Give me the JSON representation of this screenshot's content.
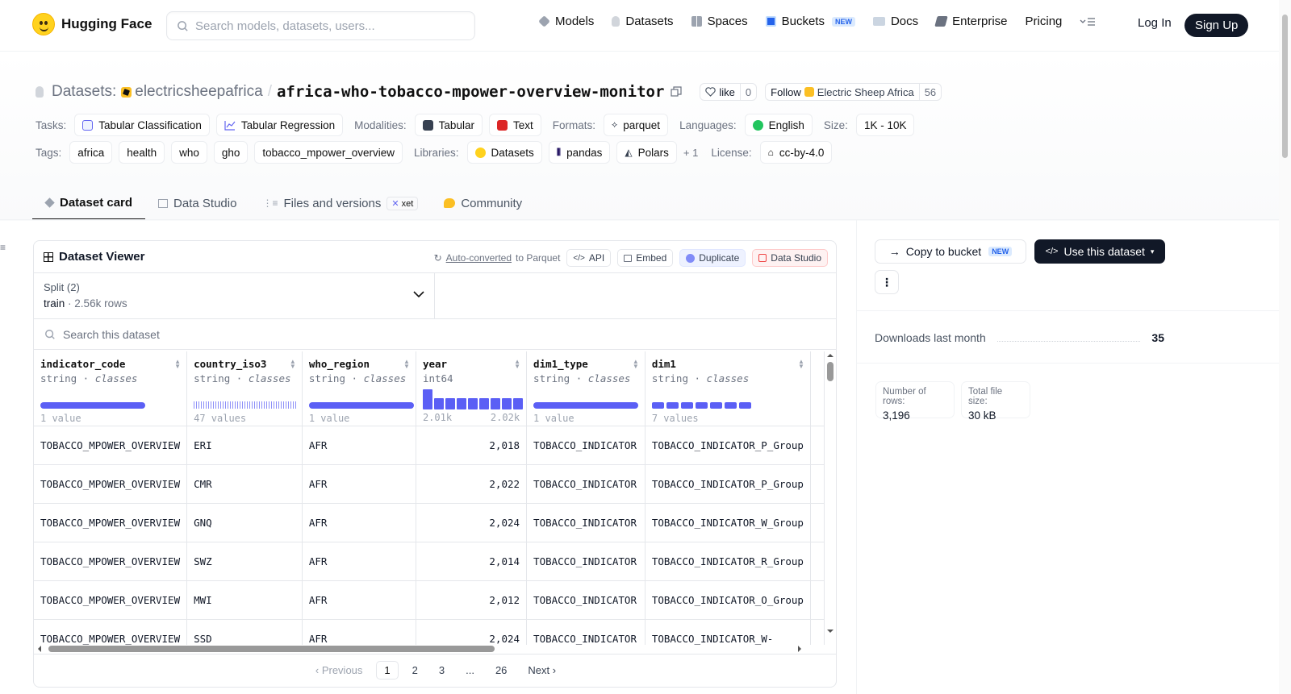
{
  "nav": {
    "brand": "Hugging Face",
    "search_placeholder": "Search models, datasets, users...",
    "links": [
      {
        "label": "Models",
        "icon": "models-icon",
        "color": "#9ca3af"
      },
      {
        "label": "Datasets",
        "icon": "datasets-icon",
        "color": "#d1d5db"
      },
      {
        "label": "Spaces",
        "icon": "spaces-icon",
        "color": "#9ca3af"
      },
      {
        "label": "Buckets",
        "icon": "buckets-icon",
        "color": "#2563eb",
        "badge": "NEW"
      },
      {
        "label": "Docs",
        "icon": "docs-icon",
        "color": "#9ca3af"
      },
      {
        "label": "Enterprise",
        "icon": "enterprise-icon",
        "color": "#6b7280"
      },
      {
        "label": "Pricing"
      }
    ],
    "login": "Log In",
    "signup": "Sign Up"
  },
  "header": {
    "datasets_label": "Datasets:",
    "org": "electricsheepafrica",
    "separator": "/",
    "name": "africa-who-tobacco-mpower-overview-monitor",
    "like_label": "like",
    "like_count": "0",
    "follow_label": "Follow",
    "follow_org": "Electric Sheep Africa",
    "follow_count": "56"
  },
  "meta": {
    "tasks_label": "Tasks:",
    "tasks": [
      "Tabular Classification",
      "Tabular Regression"
    ],
    "modalities_label": "Modalities:",
    "modalities": [
      "Tabular",
      "Text"
    ],
    "formats_label": "Formats:",
    "formats": [
      "parquet"
    ],
    "languages_label": "Languages:",
    "languages": [
      "English"
    ],
    "size_label": "Size:",
    "size": "1K - 10K",
    "tags_label": "Tags:",
    "tags": [
      "africa",
      "health",
      "who",
      "gho",
      "tobacco_mpower_overview"
    ],
    "libraries_label": "Libraries:",
    "libraries": [
      "Datasets",
      "pandas",
      "Polars"
    ],
    "libraries_more": "+ 1",
    "license_label": "License:",
    "license": "cc-by-4.0"
  },
  "tabs": [
    {
      "label": "Dataset card",
      "active": true
    },
    {
      "label": "Data Studio"
    },
    {
      "label": "Files and versions",
      "badge": "xet"
    },
    {
      "label": "Community"
    }
  ],
  "viewer": {
    "title": "Dataset Viewer",
    "auto_converted": "Auto-converted",
    "to_parquet": "to Parquet",
    "api": "API",
    "embed": "Embed",
    "duplicate": "Duplicate",
    "data_studio": "Data Studio",
    "split_label": "Split (2)",
    "split_name": "train",
    "split_dot": "·",
    "split_rows": "2.56k rows",
    "search_placeholder": "Search this dataset",
    "columns": [
      {
        "name": "indicator_code",
        "type": "string",
        "kind": "classes",
        "values": "1 value"
      },
      {
        "name": "country_iso3",
        "type": "string",
        "kind": "classes",
        "values": "47 values"
      },
      {
        "name": "who_region",
        "type": "string",
        "kind": "classes",
        "values": "1 value"
      },
      {
        "name": "year",
        "type": "int64",
        "kind": "",
        "min": "2.01k",
        "max": "2.02k"
      },
      {
        "name": "dim1_type",
        "type": "string",
        "kind": "classes",
        "values": "1 value"
      },
      {
        "name": "dim1",
        "type": "string",
        "kind": "classes",
        "values": "7 values"
      }
    ],
    "rows": [
      [
        "TOBACCO_MPOWER_OVERVIEW",
        "ERI",
        "AFR",
        "2,018",
        "TOBACCO_INDICATOR",
        "TOBACCO_INDICATOR_P_Group"
      ],
      [
        "TOBACCO_MPOWER_OVERVIEW",
        "CMR",
        "AFR",
        "2,022",
        "TOBACCO_INDICATOR",
        "TOBACCO_INDICATOR_P_Group"
      ],
      [
        "TOBACCO_MPOWER_OVERVIEW",
        "GNQ",
        "AFR",
        "2,024",
        "TOBACCO_INDICATOR",
        "TOBACCO_INDICATOR_W_Group"
      ],
      [
        "TOBACCO_MPOWER_OVERVIEW",
        "SWZ",
        "AFR",
        "2,014",
        "TOBACCO_INDICATOR",
        "TOBACCO_INDICATOR_R_Group"
      ],
      [
        "TOBACCO_MPOWER_OVERVIEW",
        "MWI",
        "AFR",
        "2,012",
        "TOBACCO_INDICATOR",
        "TOBACCO_INDICATOR_O_Group"
      ],
      [
        "TOBACCO_MPOWER_OVERVIEW",
        "SSD",
        "AFR",
        "2,024",
        "TOBACCO_INDICATOR",
        "TOBACCO_INDICATOR_W-"
      ]
    ],
    "pager": {
      "prev": "Previous",
      "pages": [
        "1",
        "2",
        "3",
        "...",
        "26"
      ],
      "current": "1",
      "next": "Next"
    }
  },
  "sidebar": {
    "copy_to_bucket": "Copy to bucket",
    "copy_badge": "NEW",
    "use_dataset": "Use this dataset",
    "downloads_label": "Downloads last month",
    "downloads_value": "35",
    "rows_label": "Number of rows:",
    "rows_value": "3,196",
    "size_label": "Total file size:",
    "size_value": "30 kB"
  }
}
